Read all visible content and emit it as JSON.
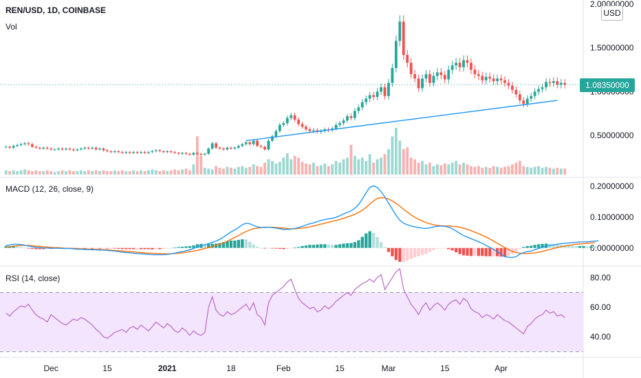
{
  "header": {
    "symbol_title": "REN/USD, 1D, COINBASE",
    "vol_label": "Vol",
    "currency_button": "USD",
    "last_price": "1.08350000"
  },
  "indicators": {
    "macd_label": "MACD (12, 26, close, 9)",
    "rsi_label": "RSI (14, close)"
  },
  "colors": {
    "up": "#26a69a",
    "down": "#ef5350",
    "macd_line": "#2196f3",
    "signal_line": "#ff6d00",
    "rsi_line": "#ba68c8",
    "rsi_band": "#f3e5fd",
    "trendline": "#2196f3"
  },
  "chart_data": [
    {
      "type": "candlestick",
      "title": "REN/USD, 1D, COINBASE",
      "y_axis_ticks": [
        "2.00000000",
        "1.50000000",
        "1.00000000",
        "0.50000000"
      ],
      "ylim": [
        0.1,
        2.0
      ],
      "x_tick_labels": [
        "Dec",
        "15",
        "2021",
        "18",
        "Feb",
        "15",
        "Mar",
        "15",
        "Apr"
      ],
      "closes": [
        0.37,
        0.36,
        0.38,
        0.39,
        0.4,
        0.41,
        0.4,
        0.37,
        0.36,
        0.35,
        0.36,
        0.35,
        0.34,
        0.34,
        0.35,
        0.34,
        0.35,
        0.34,
        0.33,
        0.34,
        0.35,
        0.36,
        0.35,
        0.36,
        0.34,
        0.35,
        0.33,
        0.32,
        0.31,
        0.32,
        0.31,
        0.3,
        0.31,
        0.3,
        0.31,
        0.3,
        0.31,
        0.3,
        0.31,
        0.32,
        0.33,
        0.32,
        0.31,
        0.32,
        0.31,
        0.3,
        0.29,
        0.3,
        0.29,
        0.28,
        0.3,
        0.29,
        0.28,
        0.29,
        0.35,
        0.41,
        0.36,
        0.35,
        0.34,
        0.36,
        0.35,
        0.36,
        0.38,
        0.4,
        0.42,
        0.4,
        0.44,
        0.38,
        0.37,
        0.34,
        0.44,
        0.49,
        0.55,
        0.62,
        0.64,
        0.7,
        0.73,
        0.68,
        0.63,
        0.6,
        0.57,
        0.55,
        0.56,
        0.54,
        0.55,
        0.57,
        0.56,
        0.58,
        0.62,
        0.64,
        0.67,
        0.72,
        0.7,
        0.78,
        0.82,
        0.88,
        0.92,
        0.96,
        0.94,
        1.0,
        1.05,
        0.95,
        1.1,
        1.27,
        1.58,
        1.8,
        1.42,
        1.33,
        1.2,
        1.15,
        1.04,
        1.15,
        1.2,
        1.1,
        1.18,
        1.22,
        1.19,
        1.14,
        1.25,
        1.3,
        1.33,
        1.28,
        1.36,
        1.33,
        1.25,
        1.2,
        1.18,
        1.13,
        1.17,
        1.15,
        1.12,
        1.15,
        1.13,
        1.1,
        1.07,
        1.02,
        0.97,
        0.9,
        0.86,
        0.92,
        0.95,
        1.0,
        1.03,
        1.05,
        1.11,
        1.1,
        1.12,
        1.08,
        1.1,
        1.08
      ],
      "volumes": [
        0.05,
        0.04,
        0.05,
        0.04,
        0.05,
        0.06,
        0.05,
        0.04,
        0.05,
        0.04,
        0.04,
        0.05,
        0.04,
        0.03,
        0.04,
        0.05,
        0.04,
        0.05,
        0.04,
        0.04,
        0.05,
        0.04,
        0.05,
        0.04,
        0.05,
        0.04,
        0.05,
        0.04,
        0.04,
        0.05,
        0.04,
        0.05,
        0.04,
        0.04,
        0.05,
        0.04,
        0.05,
        0.04,
        0.05,
        0.06,
        0.05,
        0.04,
        0.05,
        0.04,
        0.05,
        0.06,
        0.05,
        0.06,
        0.07,
        0.05,
        0.12,
        0.45,
        0.22,
        0.08,
        0.07,
        0.06,
        0.1,
        0.08,
        0.07,
        0.09,
        0.08,
        0.07,
        0.09,
        0.1,
        0.08,
        0.09,
        0.12,
        0.1,
        0.09,
        0.14,
        0.18,
        0.16,
        0.13,
        0.15,
        0.2,
        0.25,
        0.18,
        0.22,
        0.2,
        0.15,
        0.13,
        0.12,
        0.14,
        0.1,
        0.11,
        0.13,
        0.1,
        0.12,
        0.16,
        0.14,
        0.18,
        0.2,
        0.35,
        0.22,
        0.18,
        0.2,
        0.16,
        0.24,
        0.14,
        0.18,
        0.2,
        0.24,
        0.3,
        0.45,
        0.55,
        0.4,
        0.3,
        0.32,
        0.2,
        0.18,
        0.14,
        0.16,
        0.12,
        0.14,
        0.1,
        0.12,
        0.11,
        0.13,
        0.12,
        0.14,
        0.16,
        0.12,
        0.14,
        0.12,
        0.1,
        0.09,
        0.1,
        0.08,
        0.09,
        0.08,
        0.1,
        0.09,
        0.08,
        0.09,
        0.1,
        0.12,
        0.14,
        0.16,
        0.1,
        0.09,
        0.08,
        0.09,
        0.1,
        0.08,
        0.09,
        0.08,
        0.07,
        0.08,
        0.07,
        0.07
      ],
      "trendline": {
        "from_index": 64,
        "from_value": 0.44,
        "to_index": 147,
        "to_value": 0.9
      }
    },
    {
      "type": "line",
      "title": "MACD (12, 26, close, 9)",
      "y_axis_ticks": [
        "0.20000000",
        "0.10000000",
        "0.00000000"
      ],
      "ylim": [
        -0.045,
        0.215
      ],
      "series": [
        {
          "values": [
            0.008,
            0.01,
            0.012,
            0.012,
            0.011,
            0.009,
            0.006,
            0.004,
            0.002,
            0.001,
            0.0,
            0.0,
            -0.001,
            -0.001,
            -0.001,
            -0.002,
            -0.002,
            -0.002,
            -0.003,
            -0.004,
            -0.004,
            -0.005,
            -0.005,
            -0.006,
            -0.006,
            -0.007,
            -0.007,
            -0.008,
            -0.009,
            -0.01,
            -0.012,
            -0.014,
            -0.015,
            -0.016,
            -0.017,
            -0.018,
            -0.019,
            -0.02,
            -0.021,
            -0.022,
            -0.022,
            -0.022,
            -0.022,
            -0.021,
            -0.019,
            -0.017,
            -0.014,
            -0.012,
            -0.009,
            -0.006,
            -0.002,
            0.004,
            0.008,
            0.01,
            0.014,
            0.018,
            0.022,
            0.028,
            0.035,
            0.044,
            0.052,
            0.058,
            0.066,
            0.075,
            0.08,
            0.078,
            0.073,
            0.068,
            0.066,
            0.066,
            0.067,
            0.066,
            0.064,
            0.062,
            0.06,
            0.06,
            0.061,
            0.063,
            0.066,
            0.07,
            0.074,
            0.078,
            0.081,
            0.085,
            0.089,
            0.092,
            0.094,
            0.096,
            0.099,
            0.104,
            0.11,
            0.115,
            0.12,
            0.128,
            0.14,
            0.158,
            0.178,
            0.196,
            0.201,
            0.195,
            0.182,
            0.165,
            0.145,
            0.125,
            0.105,
            0.09,
            0.08,
            0.075,
            0.071,
            0.068,
            0.066,
            0.064,
            0.063,
            0.065,
            0.068,
            0.07,
            0.071,
            0.07,
            0.067,
            0.062,
            0.055,
            0.047,
            0.04,
            0.035,
            0.03,
            0.025,
            0.02,
            0.015,
            0.008,
            0.002,
            -0.005,
            -0.012,
            -0.02,
            -0.028,
            -0.03,
            -0.031,
            -0.028,
            -0.02,
            -0.015,
            -0.012,
            -0.01,
            -0.006,
            -0.002,
            0.002,
            0.006,
            0.008,
            0.01,
            0.012,
            0.014,
            0.015,
            0.016,
            0.017,
            0.018,
            0.019,
            0.02,
            0.02,
            0.021,
            0.022,
            0.023
          ]
        },
        {
          "values": [
            0.002,
            0.004,
            0.006,
            0.007,
            0.008,
            0.008,
            0.008,
            0.007,
            0.006,
            0.005,
            0.004,
            0.003,
            0.002,
            0.001,
            0.001,
            0.0,
            -0.001,
            -0.001,
            -0.002,
            -0.002,
            -0.003,
            -0.003,
            -0.004,
            -0.004,
            -0.005,
            -0.005,
            -0.006,
            -0.006,
            -0.007,
            -0.008,
            -0.009,
            -0.01,
            -0.011,
            -0.012,
            -0.013,
            -0.014,
            -0.015,
            -0.016,
            -0.017,
            -0.017,
            -0.018,
            -0.018,
            -0.019,
            -0.019,
            -0.019,
            -0.018,
            -0.017,
            -0.016,
            -0.014,
            -0.012,
            -0.01,
            -0.008,
            -0.005,
            -0.002,
            0.001,
            0.004,
            0.008,
            0.012,
            0.016,
            0.022,
            0.028,
            0.034,
            0.04,
            0.047,
            0.053,
            0.058,
            0.062,
            0.064,
            0.066,
            0.067,
            0.067,
            0.067,
            0.066,
            0.065,
            0.064,
            0.063,
            0.062,
            0.062,
            0.063,
            0.064,
            0.066,
            0.068,
            0.071,
            0.074,
            0.077,
            0.08,
            0.083,
            0.086,
            0.089,
            0.092,
            0.096,
            0.1,
            0.104,
            0.109,
            0.115,
            0.122,
            0.131,
            0.142,
            0.152,
            0.16,
            0.163,
            0.162,
            0.158,
            0.152,
            0.144,
            0.135,
            0.125,
            0.116,
            0.107,
            0.099,
            0.093,
            0.087,
            0.082,
            0.078,
            0.075,
            0.073,
            0.072,
            0.071,
            0.071,
            0.07,
            0.069,
            0.067,
            0.064,
            0.06,
            0.056,
            0.051,
            0.046,
            0.041,
            0.035,
            0.029,
            0.022,
            0.015,
            0.008,
            0.001,
            -0.005,
            -0.011,
            -0.015,
            -0.017,
            -0.018,
            -0.018,
            -0.017,
            -0.016,
            -0.014,
            -0.011,
            -0.008,
            -0.005,
            -0.002,
            0.001,
            0.004,
            0.006,
            0.008,
            0.01,
            0.012,
            0.013,
            0.014,
            0.015,
            0.016,
            0.017
          ]
        }
      ]
    },
    {
      "type": "line",
      "title": "RSI (14, close)",
      "y_axis_ticks": [
        "80.00",
        "60.00",
        "40.00"
      ],
      "ylim": [
        28,
        86
      ],
      "band": [
        30,
        70
      ],
      "series": [
        {
          "values": [
            56,
            54,
            57,
            59,
            61,
            60,
            62,
            58,
            55,
            53,
            52,
            50,
            55,
            53,
            51,
            49,
            48,
            50,
            52,
            51,
            53,
            52,
            50,
            48,
            45,
            43,
            40,
            39,
            41,
            43,
            44,
            45,
            43,
            46,
            47,
            45,
            48,
            46,
            44,
            47,
            50,
            48,
            46,
            49,
            47,
            44,
            43,
            46,
            44,
            41,
            44,
            42,
            41,
            43,
            60,
            67,
            58,
            55,
            54,
            57,
            55,
            56,
            58,
            60,
            62,
            58,
            63,
            55,
            53,
            48,
            63,
            68,
            70,
            72,
            74,
            77,
            79,
            72,
            66,
            63,
            61,
            59,
            60,
            57,
            58,
            61,
            59,
            61,
            64,
            66,
            68,
            70,
            68,
            72,
            74,
            76,
            77,
            79,
            77,
            80,
            82,
            72,
            76,
            80,
            84,
            86,
            72,
            67,
            62,
            59,
            55,
            60,
            63,
            58,
            61,
            63,
            61,
            58,
            62,
            64,
            65,
            62,
            66,
            64,
            59,
            57,
            56,
            53,
            55,
            54,
            52,
            55,
            53,
            51,
            50,
            48,
            46,
            44,
            42,
            47,
            49,
            52,
            54,
            55,
            58,
            56,
            57,
            54,
            55,
            53
          ]
        }
      ]
    }
  ]
}
